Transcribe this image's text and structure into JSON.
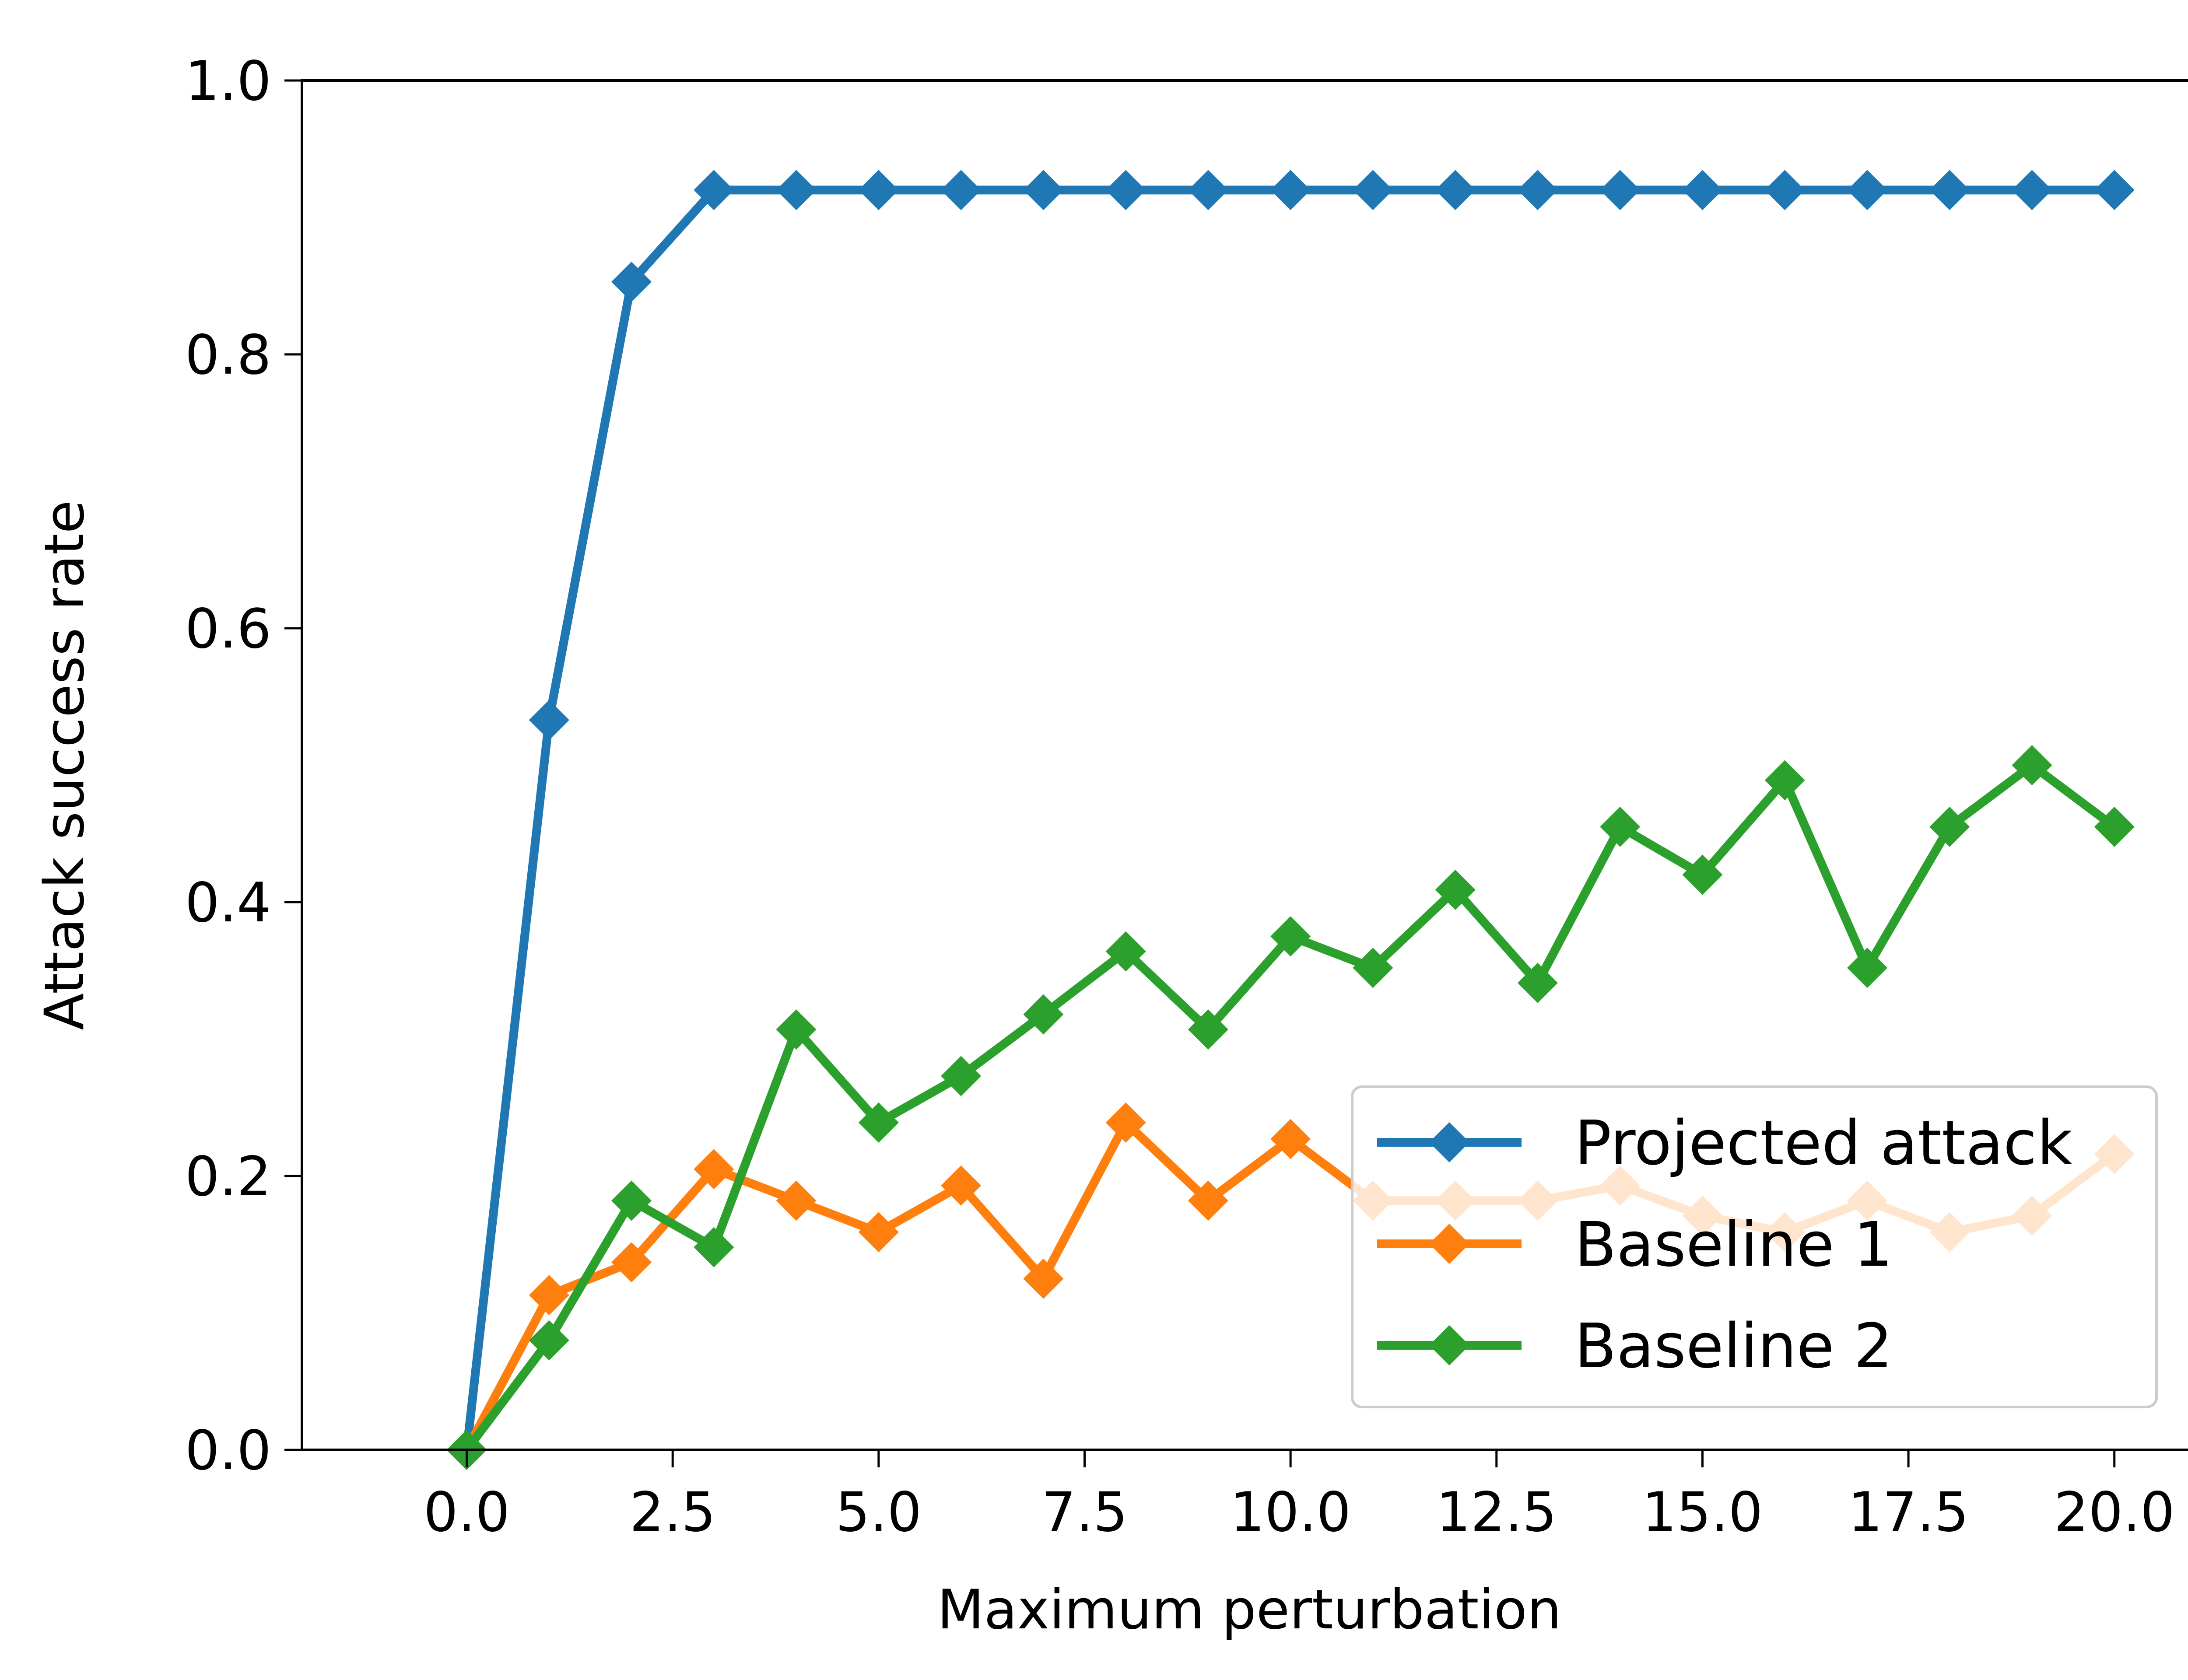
{
  "chart_data": {
    "type": "line",
    "xlabel": "Maximum perturbation",
    "ylabel": "Attack success rate",
    "xlim": [
      -2,
      21
    ],
    "ylim": [
      0,
      1
    ],
    "xticks": [
      0.0,
      2.5,
      5.0,
      7.5,
      10.0,
      12.5,
      15.0,
      17.5,
      20.0
    ],
    "xtick_labels": [
      "0.0",
      "2.5",
      "5.0",
      "7.5",
      "10.0",
      "12.5",
      "15.0",
      "17.5",
      "20.0"
    ],
    "yticks": [
      0.0,
      0.2,
      0.4,
      0.6,
      0.8,
      1.0
    ],
    "ytick_labels": [
      "0.0",
      "0.2",
      "0.4",
      "0.6",
      "0.8",
      "1.0"
    ],
    "grid": false,
    "legend_position": "lower right",
    "x": [
      0,
      1,
      2,
      3,
      4,
      5,
      6,
      7,
      8,
      9,
      10,
      11,
      12,
      13,
      14,
      15,
      16,
      17,
      18,
      19,
      20
    ],
    "series": [
      {
        "name": "Projected attack",
        "color": "#1f77b4",
        "marker": "diamond",
        "values": [
          0.0,
          0.533,
          0.853,
          0.92,
          0.92,
          0.92,
          0.92,
          0.92,
          0.92,
          0.92,
          0.92,
          0.92,
          0.92,
          0.92,
          0.92,
          0.92,
          0.92,
          0.92,
          0.92,
          0.92,
          0.92
        ]
      },
      {
        "name": "Baseline 1",
        "color": "#ff7f0e",
        "marker": "diamond",
        "values": [
          0.0,
          0.113,
          0.137,
          0.205,
          0.182,
          0.159,
          0.193,
          0.125,
          0.239,
          0.182,
          0.227,
          0.182,
          0.182,
          0.182,
          0.193,
          0.171,
          0.159,
          0.182,
          0.159,
          0.171,
          0.216
        ]
      },
      {
        "name": "Baseline 2",
        "color": "#2ca02c",
        "marker": "diamond",
        "values": [
          0.0,
          0.08,
          0.182,
          0.148,
          0.307,
          0.239,
          0.273,
          0.318,
          0.364,
          0.307,
          0.375,
          0.352,
          0.409,
          0.341,
          0.455,
          0.42,
          0.489,
          0.352,
          0.455,
          0.5,
          0.455
        ]
      }
    ]
  }
}
